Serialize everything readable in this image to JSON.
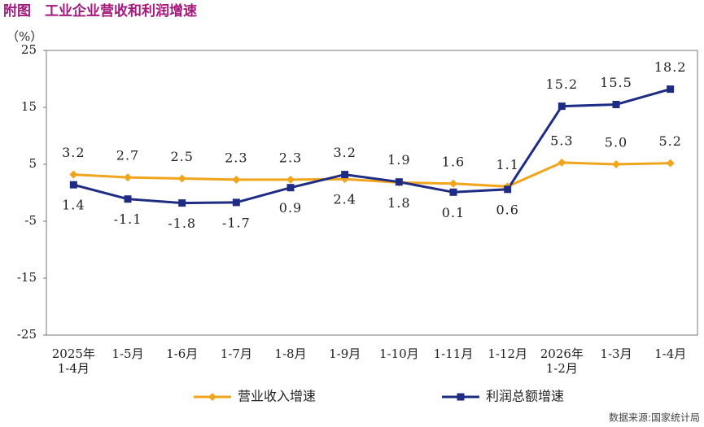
{
  "chart_data": {
    "type": "line",
    "title": "附图　工业企业营收和利润增速",
    "y_label": "（%）",
    "source": "数据来源:国家统计局",
    "categories": [
      [
        "2025年",
        "1-4月"
      ],
      "1-5月",
      "1-6月",
      "1-7月",
      "1-8月",
      "1-9月",
      "1-10月",
      "1-11月",
      "1-12月",
      [
        "2026年",
        "1-2月"
      ],
      "1-3月",
      "1-4月"
    ],
    "series": [
      {
        "name": "营业收入增速",
        "color": "#f0a51c",
        "marker": "diamond",
        "values": [
          3.2,
          2.7,
          2.5,
          2.3,
          2.3,
          2.4,
          1.8,
          1.6,
          1.1,
          5.3,
          5,
          5.2
        ],
        "value_labels": [
          "3.2",
          "2.7",
          "2.5",
          "2.3",
          "2.3",
          "2.4",
          "1.8",
          "1.6",
          "1.1",
          "5.3",
          "5.0",
          "5.2"
        ]
      },
      {
        "name": "利润总额增速",
        "color": "#1e2c84",
        "marker": "square",
        "values": [
          1.4,
          -1.1,
          -1.8,
          -1.7,
          0.9,
          3.2,
          1.9,
          0.1,
          0.6,
          15.2,
          15.5,
          18.2
        ],
        "value_labels": [
          "1.4",
          "-1.1",
          "-1.8",
          "-1.7",
          "0.9",
          "3.2",
          "1.9",
          "0.1",
          "0.6",
          "15.2",
          "15.5",
          "18.2"
        ]
      }
    ],
    "ylim": [
      -25,
      25
    ],
    "yticks": [
      25,
      15,
      5,
      -5,
      -15,
      -25
    ],
    "grid": false,
    "legend": "bottom"
  }
}
